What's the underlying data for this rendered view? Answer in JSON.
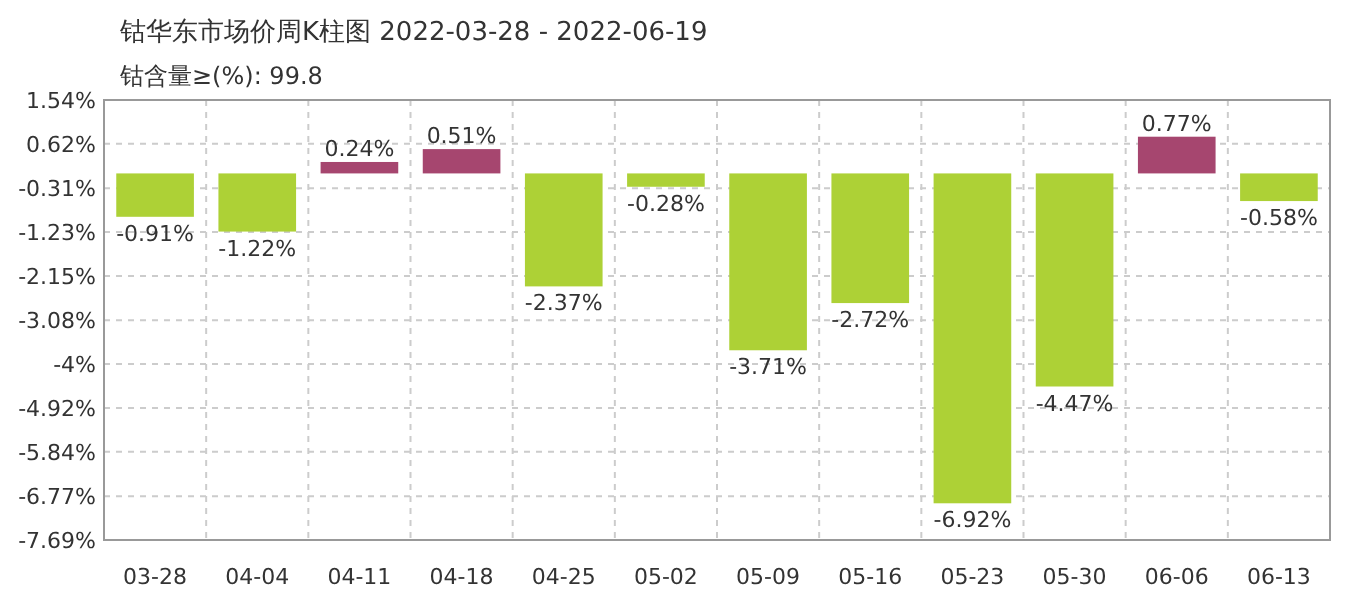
{
  "chart_data": {
    "type": "bar",
    "title": "钴华东市场价周K柱图 2022-03-28 - 2022-06-19",
    "subtitle": "钴含量≥(%): 99.8",
    "categories": [
      "03-28",
      "04-04",
      "04-11",
      "04-18",
      "04-25",
      "05-02",
      "05-09",
      "05-16",
      "05-23",
      "05-30",
      "06-06",
      "06-13"
    ],
    "values": [
      -0.91,
      -1.22,
      0.24,
      0.51,
      -2.37,
      -0.28,
      -3.71,
      -2.72,
      -6.92,
      -4.47,
      0.77,
      -0.58
    ],
    "colors": [
      "#add136",
      "#add136",
      "#a6466f",
      "#a6466f",
      "#add136",
      "#add136",
      "#add136",
      "#add136",
      "#add136",
      "#add136",
      "#a6466f",
      "#add136"
    ],
    "value_labels": [
      "-0.91%",
      "-1.22%",
      "0.24%",
      "0.51%",
      "-2.37%",
      "-0.28%",
      "-3.71%",
      "-2.72%",
      "-6.92%",
      "-4.47%",
      "0.77%",
      "-0.58%"
    ],
    "ylim": [
      -7.69,
      1.54
    ],
    "yticks": [
      {
        "value": 1.54,
        "label": "1.54%"
      },
      {
        "value": 0.62,
        "label": "0.62%"
      },
      {
        "value": -0.31,
        "label": "-0.31%"
      },
      {
        "value": -1.23,
        "label": "-1.23%"
      },
      {
        "value": -2.15,
        "label": "-2.15%"
      },
      {
        "value": -3.08,
        "label": "-3.08%"
      },
      {
        "value": -4,
        "label": "-4%"
      },
      {
        "value": -4.92,
        "label": "-4.92%"
      },
      {
        "value": -5.84,
        "label": "-5.84%"
      },
      {
        "value": -6.77,
        "label": "-6.77%"
      },
      {
        "value": -7.69,
        "label": "-7.69%"
      }
    ],
    "grid": true
  }
}
